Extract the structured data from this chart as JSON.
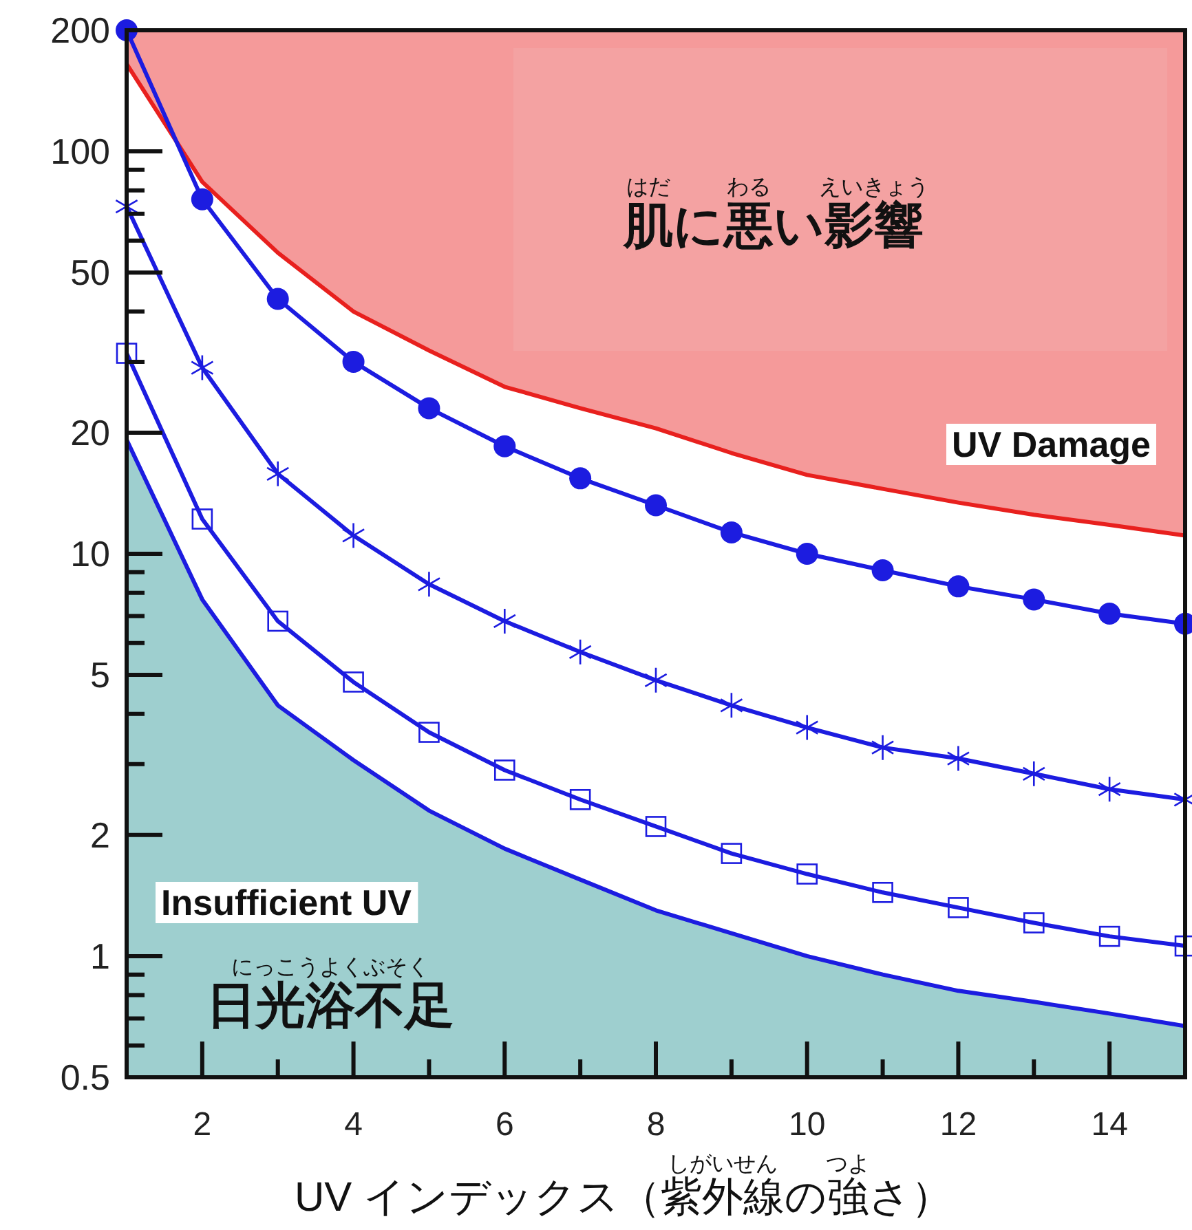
{
  "chart_data": {
    "type": "line",
    "xlabel": "UV インデックス（紫外線の強さ）",
    "log": true,
    "color": "#1c1ce0",
    "x": [
      1,
      2,
      3,
      4,
      5,
      6,
      7,
      8,
      9,
      10,
      11,
      12,
      13,
      14,
      15
    ],
    "xlim": [
      1,
      15
    ],
    "xticks": [
      2,
      4,
      6,
      8,
      10,
      12,
      14
    ],
    "ylim": [
      0.5,
      200
    ],
    "yticks": [
      0.5,
      1,
      2,
      5,
      10,
      20,
      50,
      100,
      200
    ],
    "series": [
      {
        "type": "line",
        "color": "#e8201e",
        "marker": "none",
        "values": [
          165,
          84,
          56,
          40,
          32,
          26,
          23,
          20.5,
          17.8,
          15.7,
          14.5,
          13.4,
          12.5,
          11.8,
          11.1
        ],
        "lower": [
          165,
          84,
          56,
          40,
          32,
          26,
          23,
          20.5,
          17.8,
          15.7,
          14.5,
          13.4,
          12.5,
          11.8,
          11.1
        ],
        "upper": [
          200,
          200,
          200,
          200,
          200,
          200,
          200,
          200,
          200,
          200,
          200,
          200,
          200,
          200,
          200
        ]
      },
      {
        "type": "line",
        "marker": "circle",
        "values": [
          200,
          76,
          43,
          30,
          23,
          18.5,
          15.4,
          13.2,
          11.3,
          10,
          9.1,
          8.3,
          7.7,
          7.1,
          6.7
        ]
      },
      {
        "type": "line",
        "marker": "cross",
        "values": [
          73,
          29,
          15.8,
          11.1,
          8.4,
          6.8,
          5.7,
          4.85,
          4.2,
          3.7,
          3.3,
          3.1,
          2.84,
          2.6,
          2.45
        ]
      },
      {
        "type": "line",
        "marker": "square",
        "values": [
          31.5,
          12.2,
          6.8,
          4.8,
          3.6,
          2.9,
          2.45,
          2.1,
          1.8,
          1.6,
          1.44,
          1.32,
          1.21,
          1.12,
          1.06
        ]
      },
      {
        "type": "area",
        "color": "#9ecfcf",
        "marker": "none",
        "values": [
          19.2,
          7.7,
          4.2,
          3.07,
          2.3,
          1.85,
          1.55,
          1.3,
          1.14,
          1.0,
          0.9,
          0.82,
          0.77,
          0.72,
          0.67
        ]
      }
    ],
    "annotations": [
      "肌に悪い影響",
      "はだ",
      "わる",
      "えいきょう",
      "UV Damage",
      "Insufficient UV",
      "にっこうよくぶそく",
      "日光浴不足",
      "しがいせん",
      "つよ"
    ]
  }
}
